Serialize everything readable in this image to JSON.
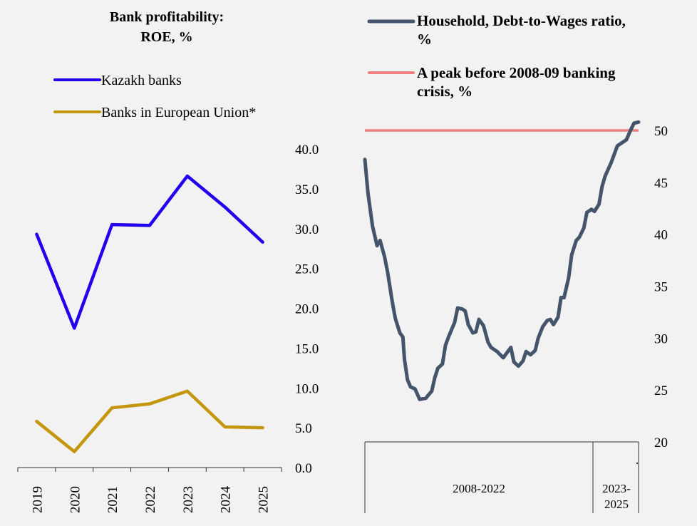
{
  "chart_data": [
    {
      "type": "line",
      "title": [
        "Bank profitability:",
        "ROE, %"
      ],
      "categories": [
        "2019",
        "2020",
        "2021",
        "2022",
        "2023",
        "2024",
        "2025"
      ],
      "series": [
        {
          "name": "Kazakh banks",
          "color": "#2200ee",
          "values": [
            29.3,
            17.5,
            30.5,
            30.4,
            36.6,
            32.7,
            28.3
          ]
        },
        {
          "name": "Banks in European Union*",
          "color": "#c4960c",
          "values": [
            5.8,
            2.0,
            7.5,
            8.0,
            9.6,
            5.1,
            5.0
          ]
        }
      ],
      "ylim": [
        0,
        40
      ],
      "yticks": [
        "0.0",
        "5.0",
        "10.0",
        "15.0",
        "20.0",
        "25.0",
        "30.0",
        "35.0",
        "40.0"
      ],
      "legend_placement": "top-left",
      "grid": false
    },
    {
      "type": "line",
      "xlim": [
        2008,
        2026
      ],
      "ylim": [
        20,
        50
      ],
      "yticks": [
        "20",
        "25",
        "30",
        "35",
        "40",
        "45",
        "50"
      ],
      "x_groups": [
        {
          "label": "2008-2022",
          "from": 2008,
          "to": 2023
        },
        {
          "label": "2023-\n2025",
          "line1": "2023-",
          "line2": "2025",
          "from": 2023,
          "to": 2026
        }
      ],
      "series": [
        {
          "name": "Household, Debt-to-Wages ratio, %",
          "name_line1": "Household, Debt-to-Wages ratio,",
          "name_line2": "%",
          "color": "#44546a",
          "x": [
            2008.0,
            2008.2,
            2008.5,
            2008.8,
            2009.0,
            2009.3,
            2009.5,
            2009.8,
            2010.0,
            2010.3,
            2010.5,
            2010.6,
            2010.8,
            2011.0,
            2011.3,
            2011.6,
            2012.0,
            2012.4,
            2012.6,
            2012.8,
            2013.1,
            2013.3,
            2013.5,
            2013.9,
            2014.1,
            2014.4,
            2014.6,
            2014.8,
            2015.1,
            2015.3,
            2015.5,
            2015.8,
            2016.1,
            2016.3,
            2016.7,
            2017.1,
            2017.6,
            2017.8,
            2018.1,
            2018.4,
            2018.6,
            2018.9,
            2019.2,
            2019.4,
            2019.7,
            2020.0,
            2020.2,
            2020.4,
            2020.7,
            2020.9,
            2021.1,
            2021.4,
            2021.6,
            2021.9,
            2022.1,
            2022.4,
            2022.6,
            2022.9,
            2023.1,
            2023.4,
            2023.6,
            2023.8,
            2024.2,
            2024.6,
            2024.9,
            2025.2,
            2025.5,
            2025.7,
            2026.0
          ],
          "values": [
            47.2,
            44.0,
            40.8,
            38.9,
            39.4,
            37.8,
            36.3,
            33.5,
            31.9,
            30.5,
            30.1,
            28.0,
            26.0,
            25.3,
            25.1,
            24.1,
            24.2,
            24.9,
            26.2,
            27.1,
            27.5,
            29.3,
            30.1,
            31.5,
            32.9,
            32.8,
            32.6,
            31.3,
            30.5,
            30.6,
            31.8,
            31.2,
            29.6,
            29.1,
            28.7,
            28.1,
            29.1,
            27.7,
            27.3,
            27.8,
            28.7,
            28.4,
            28.8,
            30.0,
            31.1,
            31.7,
            31.8,
            31.3,
            32.0,
            33.9,
            33.9,
            35.8,
            38.0,
            39.4,
            39.7,
            40.6,
            42.1,
            42.4,
            42.2,
            42.9,
            44.6,
            45.6,
            46.9,
            48.5,
            48.8,
            49.1,
            50.1,
            50.7,
            50.8
          ]
        },
        {
          "name": "A peak before 2008-09 banking crisis, %",
          "name_line1": "A peak before 2008-09 banking",
          "name_line2": "crisis, %",
          "color": "#f08080",
          "values": [
            50,
            50
          ]
        }
      ],
      "legend_placement": "top",
      "grid": false
    }
  ]
}
